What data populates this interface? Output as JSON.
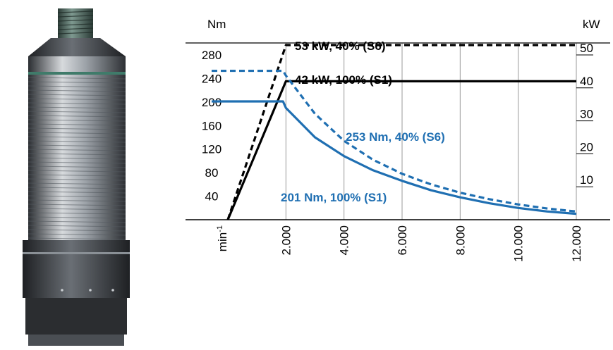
{
  "image": {
    "subject": "spindle-motor",
    "colors": {
      "body_dark": "#3b3f44",
      "body_light": "#c9cdd1",
      "thread": "#4f6a62"
    }
  },
  "chart_data": {
    "type": "line",
    "x_unit": "min-1",
    "x_unit_base": "min",
    "x_unit_sup": "-1",
    "xlim": [
      0,
      12000
    ],
    "x_ticks": [
      {
        "value": 2000,
        "label": "2.000"
      },
      {
        "value": 4000,
        "label": "4.000"
      },
      {
        "value": 6000,
        "label": "6.000"
      },
      {
        "value": 8000,
        "label": "8.000"
      },
      {
        "value": 10000,
        "label": "10.000"
      },
      {
        "value": 12000,
        "label": "12.000"
      }
    ],
    "y_left": {
      "unit": "Nm",
      "ylim": [
        0,
        280
      ],
      "ticks": [
        {
          "value": 40,
          "label": "40"
        },
        {
          "value": 80,
          "label": "80"
        },
        {
          "value": 120,
          "label": "120"
        },
        {
          "value": 160,
          "label": "160"
        },
        {
          "value": 200,
          "label": "200"
        },
        {
          "value": 240,
          "label": "240"
        },
        {
          "value": 280,
          "label": "280"
        }
      ]
    },
    "y_right": {
      "unit": "kW",
      "ylim": [
        0,
        50
      ],
      "ticks": [
        {
          "value": 10,
          "label": "10"
        },
        {
          "value": 20,
          "label": "20"
        },
        {
          "value": 30,
          "label": "30"
        },
        {
          "value": 40,
          "label": "40"
        },
        {
          "value": 50,
          "label": "50"
        }
      ]
    },
    "grid": true,
    "series": [
      {
        "axis": "right",
        "style": "dashed",
        "color": "#000000",
        "x": [
          0,
          2000,
          12000
        ],
        "y": [
          0,
          53,
          53
        ],
        "label": "53 kW, 40% (S6)"
      },
      {
        "axis": "right",
        "style": "solid",
        "color": "#000000",
        "x": [
          0,
          2000,
          12000
        ],
        "y": [
          0,
          42,
          42
        ],
        "label": "42 kW, 100% (S1)"
      },
      {
        "axis": "left",
        "style": "dashed",
        "color": "#1f6fb2",
        "x": [
          0,
          1900,
          2000,
          3000,
          4000,
          5000,
          6000,
          7000,
          8000,
          9000,
          10000,
          11000,
          12000
        ],
        "y": [
          253,
          253,
          245,
          180,
          134,
          102,
          78,
          60,
          46,
          35,
          26,
          19,
          14
        ],
        "label": "253 Nm, 40% (S6)"
      },
      {
        "axis": "left",
        "style": "solid",
        "color": "#1f6fb2",
        "x": [
          0,
          1900,
          2000,
          3000,
          4000,
          5000,
          6000,
          7000,
          8000,
          9000,
          10000,
          11000,
          12000
        ],
        "y": [
          201,
          201,
          190,
          140,
          108,
          84,
          66,
          50,
          38,
          28,
          20,
          14,
          10
        ],
        "label": "201 Nm, 100% (S1)"
      }
    ]
  }
}
